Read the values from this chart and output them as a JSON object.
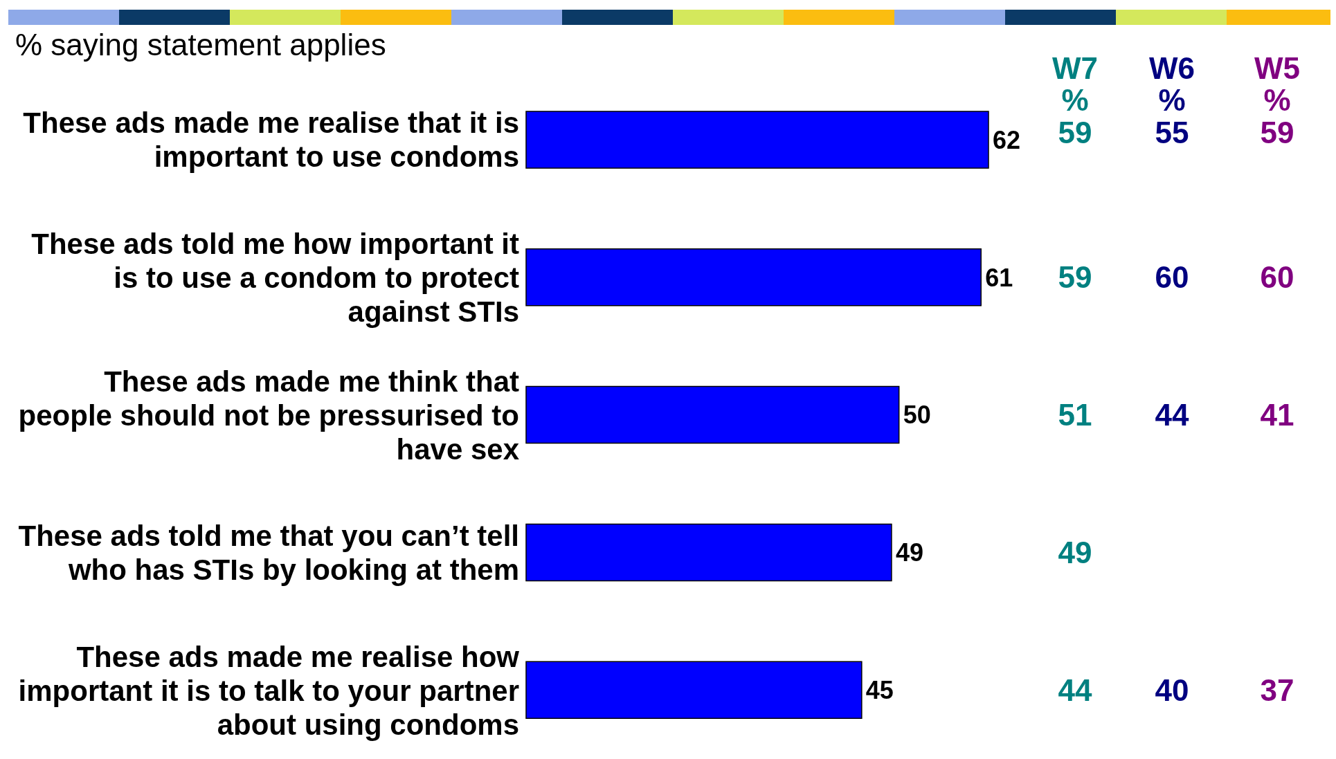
{
  "chart_data": {
    "type": "bar",
    "orientation": "horizontal",
    "title": "% saying statement applies",
    "categories": [
      "These ads made me realise that it is important to use condoms",
      "These ads told me how important it is to use a condom to protect against STIs",
      "These ads made me think that people should not be pressurised to have sex",
      "These ads told me that you can’t tell who has STIs by looking at them",
      "These ads made me realise how important it is to talk to your partner about using condoms"
    ],
    "series": [
      {
        "color": "#0000ff",
        "values": [
          62,
          61,
          50,
          49,
          45
        ]
      }
    ],
    "annotations": [
      "W7 %",
      "W6 %",
      "W5 %",
      "59 55 59",
      "59 60 60",
      "51 44 41",
      "49",
      "44 40 37"
    ],
    "data_labels": true
  }
}
